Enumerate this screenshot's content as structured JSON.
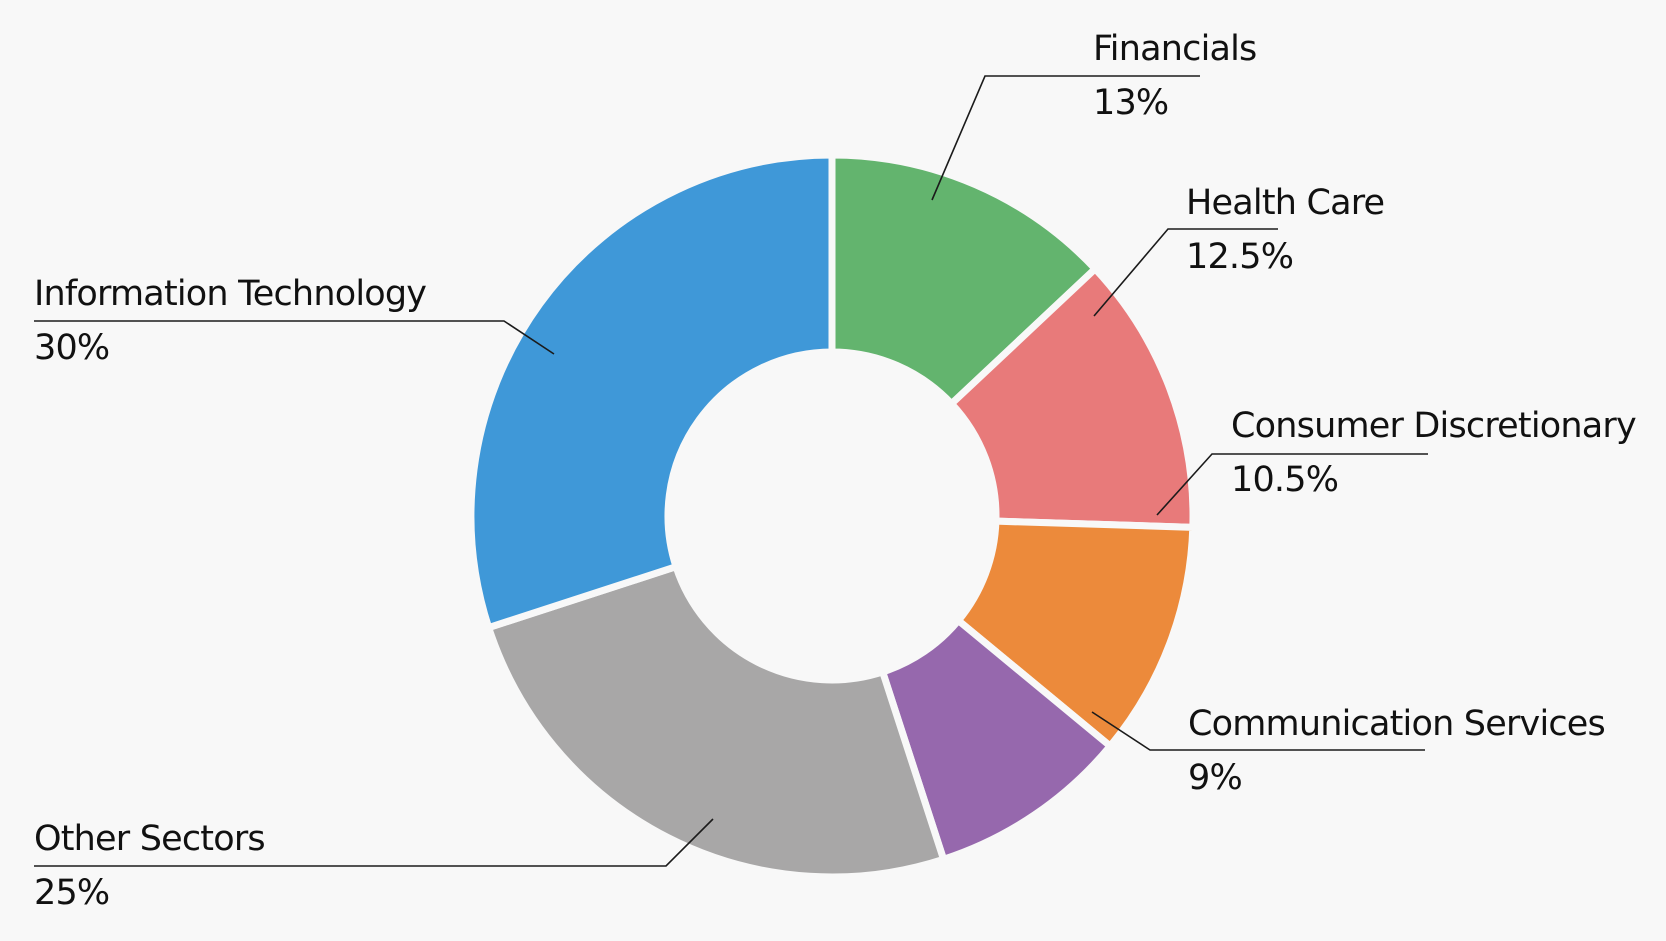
{
  "chart_data": {
    "type": "pie",
    "variant": "donut",
    "title": "",
    "legend": "none",
    "series": [
      {
        "name": "Financials",
        "value": 13,
        "label": "13%",
        "color": "#63b46e"
      },
      {
        "name": "Health Care",
        "value": 12.5,
        "label": "12.5%",
        "color": "#e87a7a"
      },
      {
        "name": "Consumer Discretionary",
        "value": 10.5,
        "label": "10.5%",
        "color": "#ec8a3b"
      },
      {
        "name": "Communication Services",
        "value": 9,
        "label": "9%",
        "color": "#9668ad"
      },
      {
        "name": "Other Sectors",
        "value": 25,
        "label": "25%",
        "color": "#a8a7a7"
      },
      {
        "name": "Information Technology",
        "value": 30,
        "label": "30%",
        "color": "#3f98d8"
      }
    ]
  }
}
